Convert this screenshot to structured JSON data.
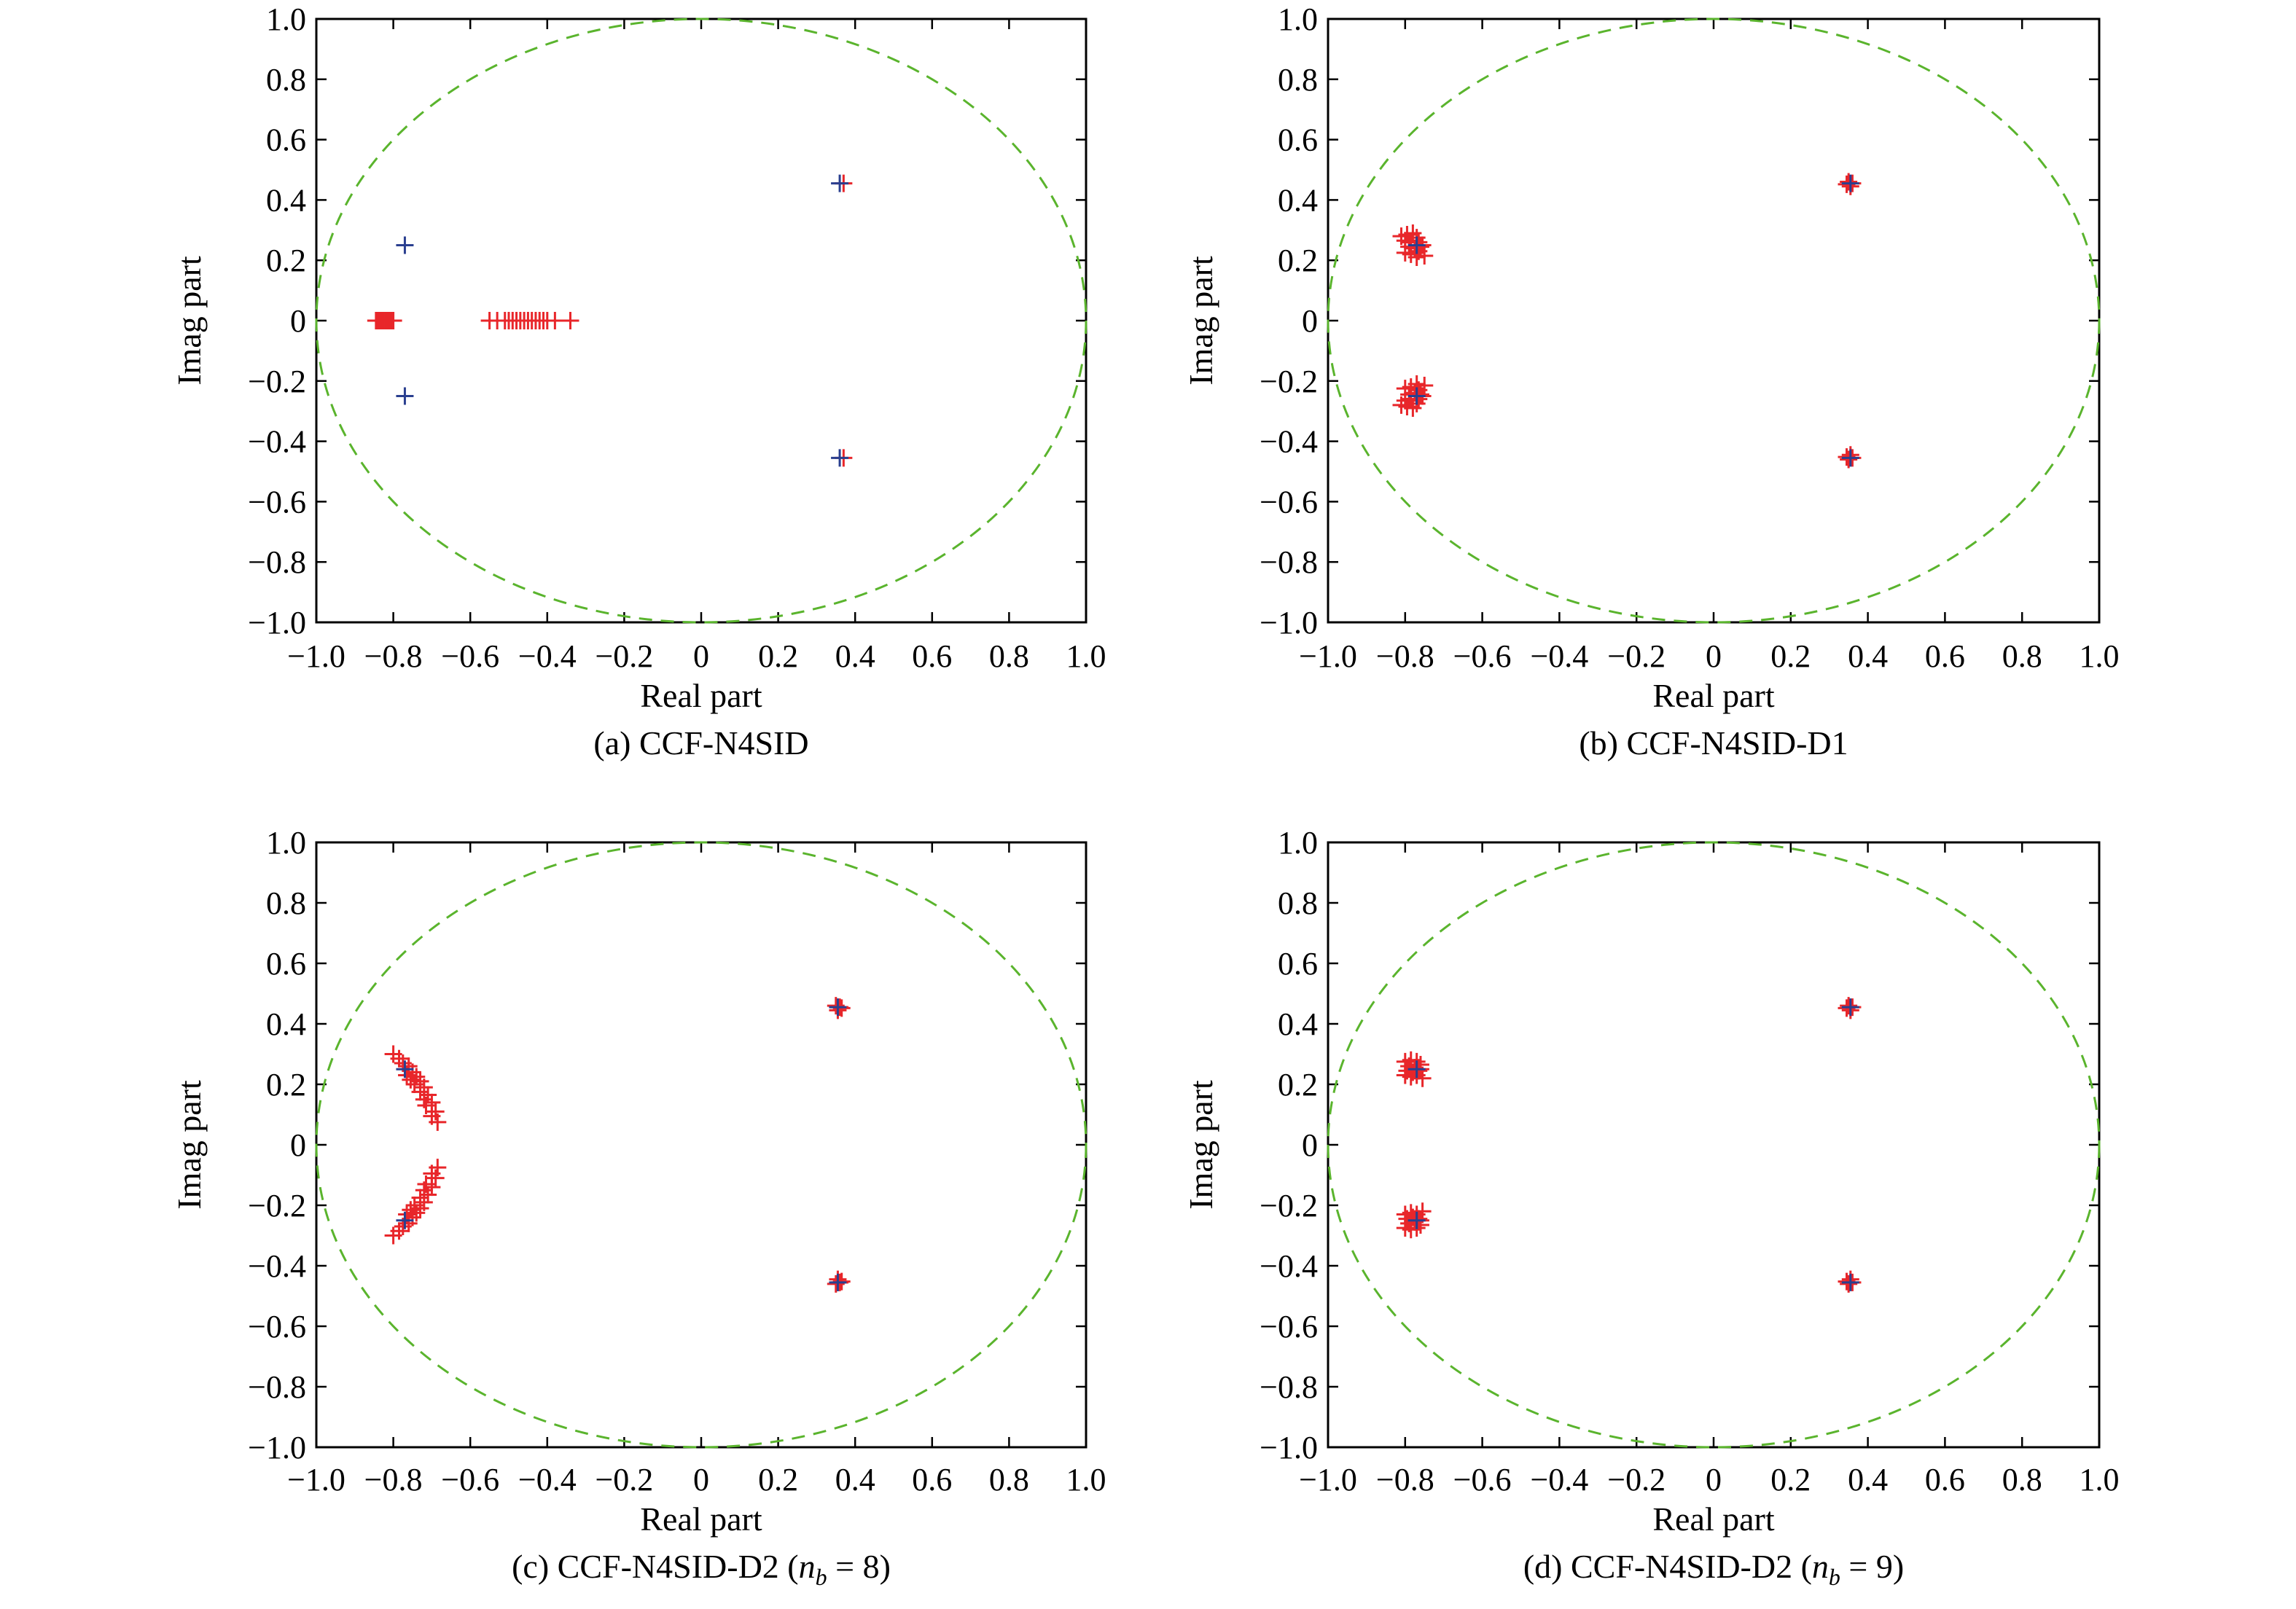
{
  "chart_data": [
    {
      "type": "scatter",
      "caption": "(a) CCF-N4SID",
      "xlabel": "Real part",
      "ylabel": "Imag part",
      "xlim": [
        -1.0,
        1.0
      ],
      "ylim": [
        -1.0,
        1.0
      ],
      "xticks": [
        "−1.0",
        "−0.8",
        "−0.6",
        "−0.4",
        "−0.2",
        "0",
        "0.2",
        "0.4",
        "0.6",
        "0.8",
        "1.0"
      ],
      "yticks": [
        "1.0",
        "0.8",
        "0.6",
        "0.4",
        "0.2",
        "0",
        "−0.2",
        "−0.4",
        "−0.6",
        "−0.8",
        "−1.0"
      ],
      "unit_circle": {
        "color": "#5ab42d",
        "style": "dashed"
      },
      "grid": false,
      "series": [
        {
          "color": "#e8262a",
          "marker": "+",
          "points": [
            [
              -0.845,
              0
            ],
            [
              -0.84,
              0
            ],
            [
              -0.835,
              0
            ],
            [
              -0.83,
              0
            ],
            [
              -0.825,
              0
            ],
            [
              -0.82,
              0
            ],
            [
              -0.815,
              0
            ],
            [
              -0.81,
              0
            ],
            [
              -0.805,
              0
            ],
            [
              -0.8,
              0
            ],
            [
              -0.55,
              0
            ],
            [
              -0.53,
              0
            ],
            [
              -0.51,
              0
            ],
            [
              -0.5,
              0
            ],
            [
              -0.49,
              0
            ],
            [
              -0.48,
              0
            ],
            [
              -0.47,
              0
            ],
            [
              -0.46,
              0
            ],
            [
              -0.45,
              0
            ],
            [
              -0.44,
              0
            ],
            [
              -0.43,
              0
            ],
            [
              -0.42,
              0
            ],
            [
              -0.41,
              0
            ],
            [
              -0.4,
              0
            ],
            [
              -0.38,
              0
            ],
            [
              -0.34,
              0
            ],
            [
              0.37,
              0.455
            ],
            [
              0.37,
              -0.455
            ]
          ]
        },
        {
          "color": "#2a3f8f",
          "marker": "+",
          "points": [
            [
              -0.77,
              0.25
            ],
            [
              -0.77,
              -0.25
            ],
            [
              0.36,
              0.455
            ],
            [
              0.36,
              -0.455
            ]
          ]
        }
      ]
    },
    {
      "type": "scatter",
      "caption": "(b) CCF-N4SID-D1",
      "xlabel": "Real part",
      "ylabel": "Imag part",
      "xlim": [
        -1.0,
        1.0
      ],
      "ylim": [
        -1.0,
        1.0
      ],
      "xticks": [
        "−1.0",
        "−0.8",
        "−0.6",
        "−0.4",
        "−0.2",
        "0",
        "0.2",
        "0.4",
        "0.6",
        "0.8",
        "1.0"
      ],
      "yticks": [
        "1.0",
        "0.8",
        "0.6",
        "0.4",
        "0.2",
        "0",
        "−0.2",
        "−0.4",
        "−0.6",
        "−0.8",
        "−1.0"
      ],
      "unit_circle": {
        "color": "#5ab42d",
        "style": "dashed"
      },
      "grid": false,
      "series": [
        {
          "color": "#e8262a",
          "marker": "+",
          "points": [
            [
              -0.81,
              0.28
            ],
            [
              -0.795,
              0.285
            ],
            [
              -0.78,
              0.29
            ],
            [
              -0.77,
              0.275
            ],
            [
              -0.8,
              0.265
            ],
            [
              -0.785,
              0.26
            ],
            [
              -0.765,
              0.26
            ],
            [
              -0.79,
              0.245
            ],
            [
              -0.775,
              0.24
            ],
            [
              -0.76,
              0.245
            ],
            [
              -0.8,
              0.225
            ],
            [
              -0.785,
              0.22
            ],
            [
              -0.765,
              0.23
            ],
            [
              -0.75,
              0.215
            ],
            [
              -0.755,
              0.25
            ],
            [
              -0.77,
              0.21
            ],
            [
              -0.81,
              -0.28
            ],
            [
              -0.795,
              -0.285
            ],
            [
              -0.78,
              -0.29
            ],
            [
              -0.77,
              -0.275
            ],
            [
              -0.8,
              -0.265
            ],
            [
              -0.785,
              -0.26
            ],
            [
              -0.765,
              -0.26
            ],
            [
              -0.79,
              -0.245
            ],
            [
              -0.775,
              -0.24
            ],
            [
              -0.76,
              -0.245
            ],
            [
              -0.8,
              -0.225
            ],
            [
              -0.785,
              -0.22
            ],
            [
              -0.765,
              -0.23
            ],
            [
              -0.75,
              -0.215
            ],
            [
              -0.755,
              -0.25
            ],
            [
              -0.77,
              -0.21
            ],
            [
              0.35,
              0.46
            ],
            [
              0.36,
              0.455
            ],
            [
              0.355,
              0.445
            ],
            [
              0.345,
              0.452
            ],
            [
              0.35,
              -0.46
            ],
            [
              0.36,
              -0.455
            ],
            [
              0.355,
              -0.445
            ],
            [
              0.345,
              -0.452
            ]
          ]
        },
        {
          "color": "#2a3f8f",
          "marker": "+",
          "points": [
            [
              -0.77,
              0.25
            ],
            [
              -0.77,
              -0.25
            ],
            [
              0.355,
              0.455
            ],
            [
              0.355,
              -0.455
            ]
          ]
        }
      ]
    },
    {
      "type": "scatter",
      "caption": "(c) CCF-N4SID-D2 (n_b = 8)",
      "xlabel": "Real part",
      "ylabel": "Imag part",
      "xlim": [
        -1.0,
        1.0
      ],
      "ylim": [
        -1.0,
        1.0
      ],
      "xticks": [
        "−1.0",
        "−0.8",
        "−0.6",
        "−0.4",
        "−0.2",
        "0",
        "0.2",
        "0.4",
        "0.6",
        "0.8",
        "1.0"
      ],
      "yticks": [
        "1.0",
        "0.8",
        "0.6",
        "0.4",
        "0.2",
        "0",
        "−0.2",
        "−0.4",
        "−0.6",
        "−0.8",
        "−1.0"
      ],
      "unit_circle": {
        "color": "#5ab42d",
        "style": "dashed"
      },
      "grid": false,
      "series": [
        {
          "color": "#e8262a",
          "marker": "+",
          "points": [
            [
              -0.8,
              0.3
            ],
            [
              -0.785,
              0.285
            ],
            [
              -0.775,
              0.27
            ],
            [
              -0.76,
              0.26
            ],
            [
              -0.75,
              0.24
            ],
            [
              -0.74,
              0.225
            ],
            [
              -0.73,
              0.21
            ],
            [
              -0.745,
              0.2
            ],
            [
              -0.72,
              0.19
            ],
            [
              -0.73,
              0.175
            ],
            [
              -0.71,
              0.165
            ],
            [
              -0.72,
              0.15
            ],
            [
              -0.7,
              0.14
            ],
            [
              -0.715,
              0.13
            ],
            [
              -0.69,
              0.11
            ],
            [
              -0.7,
              0.095
            ],
            [
              -0.685,
              0.075
            ],
            [
              -0.765,
              0.23
            ],
            [
              -0.755,
              0.215
            ],
            [
              -0.8,
              -0.3
            ],
            [
              -0.785,
              -0.285
            ],
            [
              -0.775,
              -0.27
            ],
            [
              -0.76,
              -0.26
            ],
            [
              -0.75,
              -0.24
            ],
            [
              -0.74,
              -0.225
            ],
            [
              -0.73,
              -0.21
            ],
            [
              -0.745,
              -0.2
            ],
            [
              -0.72,
              -0.19
            ],
            [
              -0.73,
              -0.175
            ],
            [
              -0.71,
              -0.165
            ],
            [
              -0.72,
              -0.15
            ],
            [
              -0.7,
              -0.14
            ],
            [
              -0.715,
              -0.13
            ],
            [
              -0.69,
              -0.11
            ],
            [
              -0.7,
              -0.095
            ],
            [
              -0.685,
              -0.075
            ],
            [
              -0.765,
              -0.23
            ],
            [
              -0.755,
              -0.215
            ],
            [
              0.35,
              0.46
            ],
            [
              0.36,
              0.455
            ],
            [
              0.355,
              0.445
            ],
            [
              0.365,
              0.452
            ],
            [
              0.35,
              -0.46
            ],
            [
              0.36,
              -0.455
            ],
            [
              0.355,
              -0.445
            ],
            [
              0.365,
              -0.452
            ]
          ]
        },
        {
          "color": "#2a3f8f",
          "marker": "+",
          "points": [
            [
              -0.77,
              0.25
            ],
            [
              -0.77,
              -0.25
            ],
            [
              0.355,
              0.455
            ],
            [
              0.355,
              -0.455
            ]
          ]
        }
      ]
    },
    {
      "type": "scatter",
      "caption": "(d) CCF-N4SID-D2 (n_b = 9)",
      "xlabel": "Real part",
      "ylabel": "Imag part",
      "xlim": [
        -1.0,
        1.0
      ],
      "ylim": [
        -1.0,
        1.0
      ],
      "xticks": [
        "−1.0",
        "−0.8",
        "−0.6",
        "−0.4",
        "−0.2",
        "0",
        "0.2",
        "0.4",
        "0.6",
        "0.8",
        "1.0"
      ],
      "yticks": [
        "1.0",
        "0.8",
        "0.6",
        "0.4",
        "0.2",
        "0",
        "−0.2",
        "−0.4",
        "−0.6",
        "−0.8",
        "−1.0"
      ],
      "unit_circle": {
        "color": "#5ab42d",
        "style": "dashed"
      },
      "grid": false,
      "series": [
        {
          "color": "#e8262a",
          "marker": "+",
          "points": [
            [
              -0.8,
              0.275
            ],
            [
              -0.785,
              0.28
            ],
            [
              -0.77,
              0.275
            ],
            [
              -0.76,
              0.265
            ],
            [
              -0.79,
              0.26
            ],
            [
              -0.775,
              0.255
            ],
            [
              -0.795,
              0.245
            ],
            [
              -0.78,
              0.24
            ],
            [
              -0.765,
              0.245
            ],
            [
              -0.8,
              0.23
            ],
            [
              -0.785,
              0.225
            ],
            [
              -0.77,
              0.23
            ],
            [
              -0.755,
              0.22
            ],
            [
              -0.76,
              0.25
            ],
            [
              -0.8,
              -0.275
            ],
            [
              -0.785,
              -0.28
            ],
            [
              -0.77,
              -0.275
            ],
            [
              -0.76,
              -0.265
            ],
            [
              -0.79,
              -0.26
            ],
            [
              -0.775,
              -0.255
            ],
            [
              -0.795,
              -0.245
            ],
            [
              -0.78,
              -0.24
            ],
            [
              -0.765,
              -0.245
            ],
            [
              -0.8,
              -0.23
            ],
            [
              -0.785,
              -0.225
            ],
            [
              -0.77,
              -0.23
            ],
            [
              -0.755,
              -0.22
            ],
            [
              -0.76,
              -0.25
            ],
            [
              0.35,
              0.46
            ],
            [
              0.36,
              0.455
            ],
            [
              0.355,
              0.445
            ],
            [
              0.345,
              0.452
            ],
            [
              0.35,
              -0.46
            ],
            [
              0.36,
              -0.455
            ],
            [
              0.355,
              -0.445
            ],
            [
              0.345,
              -0.452
            ]
          ]
        },
        {
          "color": "#2a3f8f",
          "marker": "+",
          "points": [
            [
              -0.77,
              0.25
            ],
            [
              -0.77,
              -0.25
            ],
            [
              0.355,
              0.455
            ],
            [
              0.355,
              -0.455
            ]
          ]
        }
      ]
    }
  ]
}
